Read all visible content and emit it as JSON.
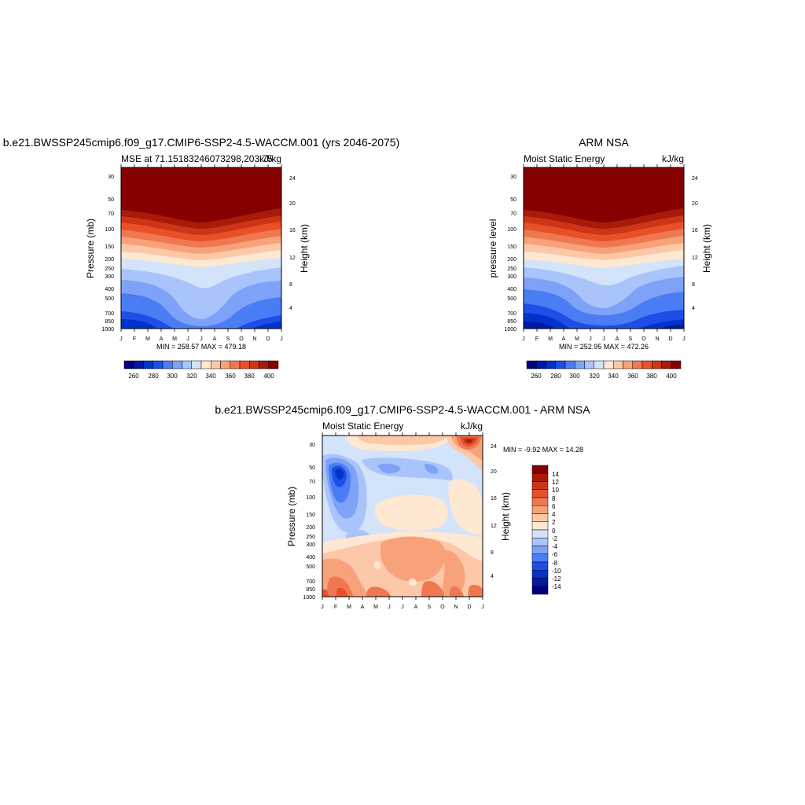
{
  "top_left": {
    "title": "b.e21.BWSSP245cmip6.f09_g17.CMIP6-SSP2-4.5-WACCM.001 (yrs 2046-2075)",
    "left_string": "MSE at 71.15183246073298,203.75",
    "right_string": "kJ/kg",
    "y_label": "Pressure (mb)",
    "right_label": "Height (km)",
    "minmax": "MIN = 258.57 MAX = 479.18"
  },
  "top_right": {
    "title": "ARM NSA",
    "left_string": "Moist Static Energy",
    "right_string": "kJ/kg",
    "y_label": "pressure level",
    "right_label": "Height (km)",
    "minmax": "MIN = 252.95 MAX = 472.26"
  },
  "bottom": {
    "title": "b.e21.BWSSP245cmip6.f09_g17.CMIP6-SSP2-4.5-WACCM.001 - ARM NSA",
    "left_string": "Moist Static Energy",
    "right_string": "kJ/kg",
    "y_label": "Pressure (mb)",
    "right_label": "Height (km)",
    "minmax": "MIN =  -9.92 MAX =  14.28"
  },
  "chart_data": [
    {
      "type": "heatmap",
      "title": "b.e21.BWSSP245cmip6.f09_g17.CMIP6-SSP2-4.5-WACCM.001 (yrs 2046-2075)",
      "subtitle": "MSE at 71.15183246073298,203.75",
      "units": "kJ/kg",
      "ylabel": "Pressure (mb)",
      "y2label": "Height (km)",
      "months": [
        "J",
        "F",
        "M",
        "A",
        "M",
        "J",
        "J",
        "A",
        "S",
        "O",
        "N",
        "D",
        "J"
      ],
      "pressure_ticks": [
        "30",
        "50",
        "70",
        "100",
        "150",
        "200",
        "250",
        "300",
        "400",
        "500",
        "700",
        "850",
        "1000"
      ],
      "height_ticks": [
        "24",
        "20",
        "16",
        "12",
        "8",
        "4"
      ],
      "colorbar_labels": [
        "260",
        "280",
        "300",
        "320",
        "340",
        "360",
        "380",
        "400"
      ],
      "min": 258.57,
      "max": 479.18
    },
    {
      "type": "heatmap",
      "title": "ARM NSA",
      "subtitle": "Moist Static Energy",
      "units": "kJ/kg",
      "ylabel": "pressure level",
      "y2label": "Height (km)",
      "months": [
        "J",
        "F",
        "M",
        "A",
        "M",
        "J",
        "J",
        "A",
        "S",
        "O",
        "N",
        "D",
        "J"
      ],
      "pressure_ticks": [
        "30",
        "50",
        "70",
        "100",
        "150",
        "200",
        "250",
        "300",
        "400",
        "500",
        "700",
        "850",
        "1000"
      ],
      "height_ticks": [
        "24",
        "20",
        "16",
        "12",
        "8",
        "4"
      ],
      "colorbar_labels": [
        "260",
        "280",
        "300",
        "320",
        "340",
        "360",
        "380",
        "400"
      ],
      "min": 252.95,
      "max": 472.26
    },
    {
      "type": "heatmap",
      "title": "b.e21.BWSSP245cmip6.f09_g17.CMIP6-SSP2-4.5-WACCM.001 - ARM NSA",
      "subtitle": "Moist Static Energy",
      "units": "kJ/kg",
      "ylabel": "Pressure (mb)",
      "y2label": "Height (km)",
      "months": [
        "J",
        "F",
        "M",
        "A",
        "M",
        "J",
        "J",
        "A",
        "S",
        "O",
        "N",
        "D",
        "J"
      ],
      "pressure_ticks": [
        "30",
        "50",
        "70",
        "100",
        "150",
        "200",
        "250",
        "300",
        "400",
        "500",
        "700",
        "850",
        "1000"
      ],
      "height_ticks": [
        "24",
        "20",
        "16",
        "12",
        "8",
        "4"
      ],
      "colorbar_labels": [
        "14",
        "12",
        "10",
        "8",
        "6",
        "4",
        "2",
        "0",
        "-2",
        "-4",
        "-6",
        "-8",
        "-10",
        "-12",
        "-14"
      ],
      "min": -9.92,
      "max": 14.28
    }
  ],
  "colors": {
    "abs_scale": [
      "#000080",
      "#0019a6",
      "#0033cc",
      "#1d4ee8",
      "#4a7cf4",
      "#7ea2f8",
      "#a8c4fa",
      "#d3e3fa",
      "#ffe8d2",
      "#fcc8a8",
      "#f7a27a",
      "#f07850",
      "#e8502a",
      "#cc3515",
      "#a81a0a",
      "#860000"
    ],
    "diff_scale": [
      "#860000",
      "#a81a0a",
      "#cc3515",
      "#e8502a",
      "#f07850",
      "#f7a27a",
      "#fcc8a8",
      "#ffe8d2",
      "#d3e3fa",
      "#a8c4fa",
      "#7ea2f8",
      "#4a7cf4",
      "#1d4ee8",
      "#0033cc",
      "#0019a6",
      "#000080"
    ]
  }
}
